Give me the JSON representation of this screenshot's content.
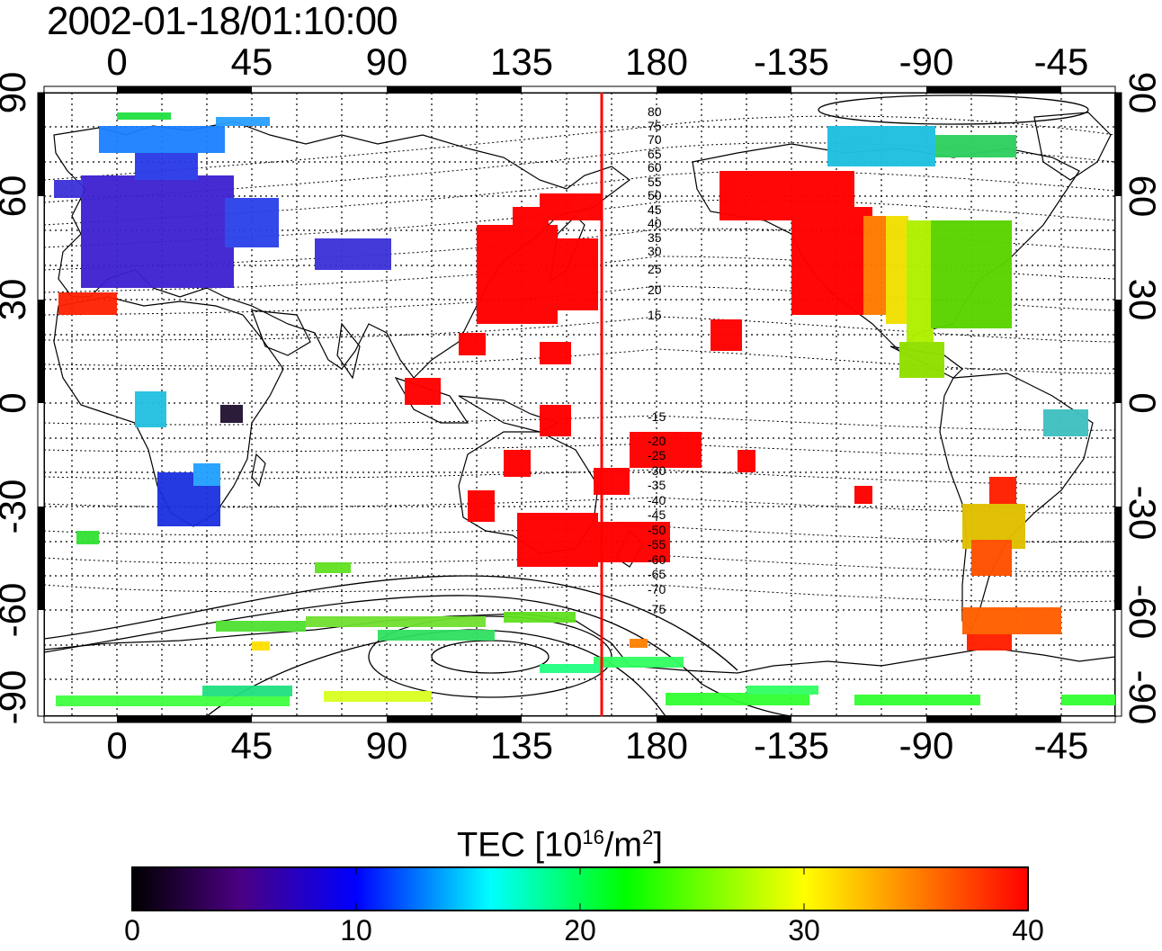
{
  "title": "2002-01-18/01:10:00",
  "axes": {
    "top_ticks": [
      "0",
      "45",
      "90",
      "135",
      "180",
      "-135",
      "-90",
      "-45"
    ],
    "bottom_ticks": [
      "0",
      "45",
      "90",
      "135",
      "180",
      "-135",
      "-90",
      "-45"
    ],
    "left_ticks": [
      "90",
      "60",
      "30",
      "0",
      "-30",
      "-60",
      "-90"
    ],
    "right_ticks": [
      "90",
      "60",
      "30",
      "0",
      "-30",
      "-60",
      "-90"
    ]
  },
  "contour_labels": {
    "north": [
      "80",
      "75",
      "70",
      "65",
      "60",
      "55",
      "50",
      "45",
      "40",
      "35",
      "30",
      "25",
      "20",
      "15"
    ],
    "south": [
      "-15",
      "-20",
      "-25",
      "-30",
      "-35",
      "-40",
      "-45",
      "-50",
      "-55",
      "-60",
      "-65",
      "-70",
      "-75"
    ]
  },
  "colorbar": {
    "label_main": "TEC  [10",
    "label_sup1": "16",
    "label_mid": "/m",
    "label_sup2": "2",
    "label_end": "]",
    "ticks": [
      "0",
      "10",
      "20",
      "30",
      "40"
    ],
    "stops": [
      "#000000",
      "#4b0082",
      "#0000ff",
      "#00ffff",
      "#00ff00",
      "#ffff00",
      "#ff0000"
    ]
  },
  "map": {
    "terminator_color": "#ff0000",
    "region_colors": {
      "europe": "#3d1fd0",
      "east_asia": "#ff0000",
      "north_america_west": "#ff0000",
      "north_america_east": "#5ad400",
      "south_america": "#ff4000",
      "antarctica": "#22e040",
      "africa_south": "#1a30e0"
    }
  }
}
